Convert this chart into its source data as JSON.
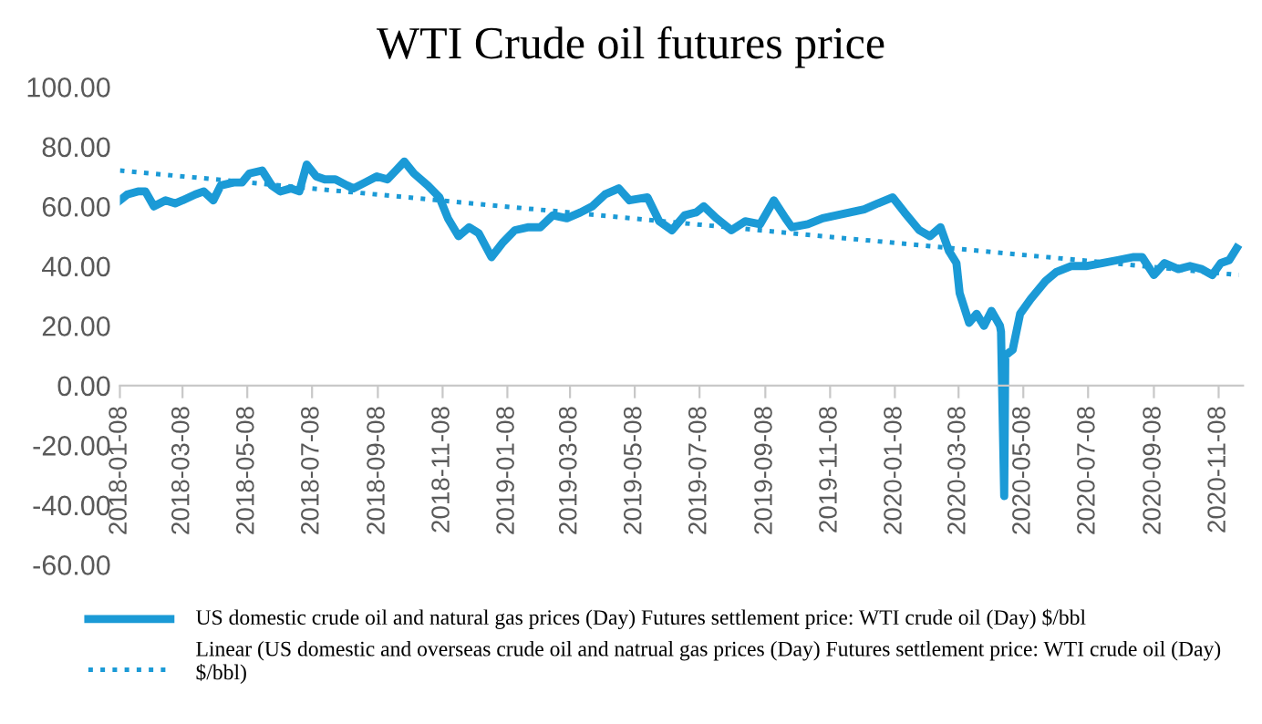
{
  "chart_data": {
    "type": "line",
    "title": "WTI Crude oil futures price",
    "series": [
      {
        "name": "US domestic crude oil and natural gas prices (Day) Futures settlement price: WTI crude oil (Day) $/bbl",
        "color": "#1b9ad6",
        "line_style": "solid",
        "x": [
          "2018-01-08",
          "2018-01-15",
          "2018-01-25",
          "2018-02-01",
          "2018-02-09",
          "2018-02-20",
          "2018-03-01",
          "2018-03-08",
          "2018-03-20",
          "2018-03-28",
          "2018-04-06",
          "2018-04-13",
          "2018-04-25",
          "2018-05-03",
          "2018-05-10",
          "2018-05-22",
          "2018-05-31",
          "2018-06-08",
          "2018-06-18",
          "2018-06-26",
          "2018-07-03",
          "2018-07-12",
          "2018-07-20",
          "2018-07-30",
          "2018-08-10",
          "2018-08-16",
          "2018-08-27",
          "2018-09-07",
          "2018-09-17",
          "2018-09-25",
          "2018-10-03",
          "2018-10-12",
          "2018-10-25",
          "2018-11-05",
          "2018-11-13",
          "2018-11-23",
          "2018-12-03",
          "2018-12-12",
          "2018-12-24",
          "2019-01-04",
          "2019-01-15",
          "2019-01-28",
          "2019-02-08",
          "2019-02-20",
          "2019-03-05",
          "2019-03-18",
          "2019-03-29",
          "2019-04-10",
          "2019-04-23",
          "2019-05-03",
          "2019-05-20",
          "2019-05-31",
          "2019-06-12",
          "2019-06-24",
          "2019-07-05",
          "2019-07-12",
          "2019-07-24",
          "2019-08-07",
          "2019-08-20",
          "2019-09-03",
          "2019-09-16",
          "2019-09-27",
          "2019-10-03",
          "2019-10-18",
          "2019-11-01",
          "2019-11-14",
          "2019-11-27",
          "2019-12-10",
          "2019-12-23",
          "2020-01-06",
          "2020-01-17",
          "2020-01-31",
          "2020-02-10",
          "2020-02-20",
          "2020-02-28",
          "2020-03-06",
          "2020-03-09",
          "2020-03-18",
          "2020-03-25",
          "2020-04-01",
          "2020-04-08",
          "2020-04-16",
          "2020-04-17",
          "2020-04-20",
          "2020-04-21",
          "2020-04-28",
          "2020-05-05",
          "2020-05-15",
          "2020-05-29",
          "2020-06-08",
          "2020-06-22",
          "2020-07-06",
          "2020-07-21",
          "2020-08-05",
          "2020-08-20",
          "2020-08-28",
          "2020-09-08",
          "2020-09-18",
          "2020-10-01",
          "2020-10-12",
          "2020-10-23",
          "2020-11-02",
          "2020-11-10",
          "2020-11-18",
          "2020-11-25"
        ],
        "values": [
          62,
          64,
          65,
          65,
          60,
          62,
          61,
          62,
          64,
          65,
          62,
          67,
          68,
          68,
          71,
          72,
          67,
          65,
          66,
          65,
          74,
          70,
          69,
          69,
          67,
          66,
          68,
          70,
          69,
          72,
          75,
          71,
          67,
          63,
          56,
          50,
          53,
          51,
          43,
          48,
          52,
          53,
          53,
          57,
          56,
          58,
          60,
          64,
          66,
          62,
          63,
          55,
          52,
          57,
          58,
          60,
          56,
          52,
          55,
          54,
          62,
          56,
          53,
          54,
          56,
          57,
          58,
          59,
          61,
          63,
          58,
          52,
          50,
          53,
          45,
          41,
          31,
          21,
          24,
          20,
          25,
          20,
          18,
          -37,
          10,
          12,
          24,
          29,
          35,
          38,
          40,
          40,
          41,
          42,
          43,
          43,
          37,
          41,
          39,
          40,
          39,
          37,
          41,
          42,
          46
        ]
      },
      {
        "name": "Linear (US domestic and overseas crude oil and natrual gas prices (Day) Futures settlement price: WTI crude oil (Day) $/bbl)",
        "color": "#1b9ad6",
        "line_style": "dotted",
        "x": [
          "2018-01-08",
          "2020-11-27"
        ],
        "values": [
          72,
          37
        ]
      }
    ],
    "ylim": [
      -60,
      100
    ],
    "yticks": [
      {
        "value": -60,
        "label": "-60.00"
      },
      {
        "value": -40,
        "label": "-40.00"
      },
      {
        "value": -20,
        "label": "-20.00"
      },
      {
        "value": 0,
        "label": "0.00"
      },
      {
        "value": 20,
        "label": "20.00"
      },
      {
        "value": 40,
        "label": "40.00"
      },
      {
        "value": 60,
        "label": "60.00"
      },
      {
        "value": 80,
        "label": "80.00"
      },
      {
        "value": 100,
        "label": "100.00"
      }
    ],
    "xlim": [
      "2018-01-08",
      "2020-12-01"
    ],
    "xticks": [
      "2018-01-08",
      "2018-03-08",
      "2018-05-08",
      "2018-07-08",
      "2018-09-08",
      "2018-11-08",
      "2019-01-08",
      "2019-03-08",
      "2019-05-08",
      "2019-07-08",
      "2019-09-08",
      "2019-11-08",
      "2020-01-08",
      "2020-03-08",
      "2020-05-08",
      "2020-07-08",
      "2020-09-08",
      "2020-11-08"
    ],
    "grid": false,
    "legend": "bottom"
  }
}
